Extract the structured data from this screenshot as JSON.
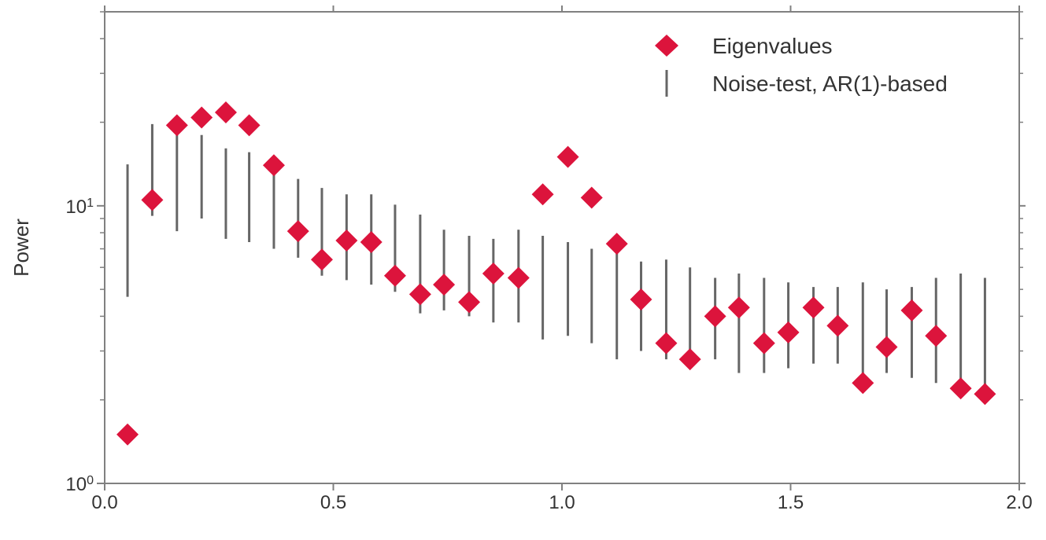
{
  "chart_data": {
    "type": "scatter",
    "title": "",
    "xlabel": "",
    "ylabel": "Power",
    "xlim": [
      0.0,
      2.0
    ],
    "ylim": [
      1,
      50
    ],
    "yscale": "log",
    "grid": false,
    "legend_position": "top-right",
    "x_ticks": [
      "0.0",
      "0.5",
      "1.0",
      "1.5",
      "2.0"
    ],
    "y_ticks": [
      {
        "value": 1,
        "base": "10",
        "exp": "0"
      },
      {
        "value": 10,
        "base": "10",
        "exp": "1"
      }
    ],
    "series": [
      {
        "name": "Eigenvalues",
        "marker": "diamond",
        "color": "#dc143c",
        "x": [
          0.05,
          0.104,
          0.158,
          0.212,
          0.265,
          0.316,
          0.37,
          0.423,
          0.475,
          0.529,
          0.583,
          0.635,
          0.69,
          0.742,
          0.797,
          0.85,
          0.905,
          0.958,
          1.013,
          1.065,
          1.12,
          1.173,
          1.228,
          1.28,
          1.335,
          1.387,
          1.442,
          1.495,
          1.55,
          1.603,
          1.658,
          1.71,
          1.765,
          1.818,
          1.872,
          1.925
        ],
        "y": [
          1.5,
          10.5,
          19.5,
          20.8,
          21.7,
          19.5,
          14.0,
          8.1,
          6.4,
          7.5,
          7.4,
          5.6,
          4.8,
          5.2,
          4.5,
          5.7,
          5.5,
          11.0,
          15.0,
          10.7,
          7.3,
          4.6,
          3.2,
          2.8,
          4.0,
          4.3,
          3.2,
          3.5,
          4.3,
          3.7,
          2.3,
          3.1,
          4.2,
          3.4,
          2.2,
          2.1
        ]
      },
      {
        "name": "Noise-test, AR(1)-based",
        "marker": "vline",
        "color": "#666666",
        "x": [
          0.05,
          0.104,
          0.158,
          0.212,
          0.265,
          0.316,
          0.37,
          0.423,
          0.475,
          0.529,
          0.583,
          0.635,
          0.69,
          0.742,
          0.797,
          0.85,
          0.905,
          0.958,
          1.013,
          1.065,
          1.12,
          1.173,
          1.228,
          1.28,
          1.335,
          1.387,
          1.442,
          1.495,
          1.55,
          1.603,
          1.658,
          1.71,
          1.765,
          1.818,
          1.872,
          1.925
        ],
        "low": [
          4.7,
          9.2,
          8.1,
          9.0,
          7.6,
          7.4,
          7.0,
          6.5,
          5.6,
          5.4,
          5.2,
          4.9,
          4.1,
          4.2,
          4.0,
          3.8,
          3.8,
          3.3,
          3.4,
          3.2,
          2.8,
          3.0,
          2.8,
          2.7,
          2.8,
          2.5,
          2.5,
          2.6,
          2.7,
          2.7,
          2.2,
          2.5,
          2.4,
          2.3,
          2.1,
          2.0
        ],
        "high": [
          14.1,
          19.7,
          19.0,
          18.0,
          16.1,
          15.6,
          15.0,
          12.5,
          11.6,
          11.0,
          11.0,
          10.1,
          9.3,
          8.2,
          7.8,
          7.6,
          8.2,
          7.8,
          7.4,
          7.0,
          7.0,
          6.3,
          6.4,
          6.0,
          5.5,
          5.7,
          5.5,
          5.3,
          5.1,
          5.1,
          5.3,
          5.0,
          5.1,
          5.5,
          5.7,
          5.5
        ]
      }
    ]
  }
}
